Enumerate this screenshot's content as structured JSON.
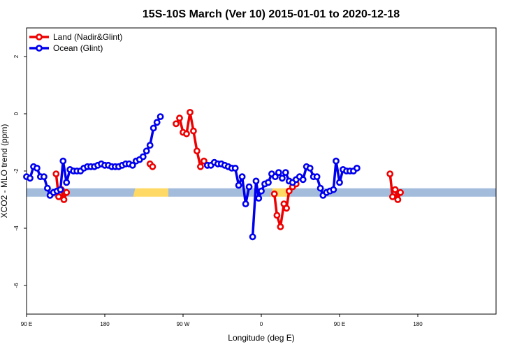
{
  "chart_data": {
    "type": "line",
    "title": "15S-10S March (Ver 10)   2015-01-01 to 2020-12-18",
    "xlabel": "Longitude (deg E)",
    "ylabel": "XCO2 - MLO trend (ppm)",
    "xlim": [
      90,
      630
    ],
    "ylim": [
      -7,
      3
    ],
    "x_ticks": [
      {
        "value": 90,
        "label": "90 E"
      },
      {
        "value": 180,
        "label": "180"
      },
      {
        "value": 270,
        "label": "90 W"
      },
      {
        "value": 360,
        "label": "0"
      },
      {
        "value": 450,
        "label": "90 E"
      },
      {
        "value": 540,
        "label": "180"
      }
    ],
    "y_ticks": [
      {
        "value": -6,
        "label": "-6"
      },
      {
        "value": -4,
        "label": "-4"
      },
      {
        "value": -2,
        "label": "-2"
      },
      {
        "value": 0,
        "label": "0"
      },
      {
        "value": 2,
        "label": "2"
      }
    ],
    "legend_position": "top-left",
    "surface_band": {
      "y": -2.75,
      "colors": {
        "ocean": "#a3bcdc",
        "land": "#ffd966"
      },
      "segments": [
        {
          "type": "ocean",
          "x": [
            90,
            215
          ]
        },
        {
          "type": "land",
          "x": [
            215,
            253
          ]
        },
        {
          "type": "ocean",
          "x": [
            253,
            373
          ]
        },
        {
          "type": "land",
          "x": [
            373,
            391
          ]
        },
        {
          "type": "ocean",
          "x": [
            391,
            630
          ]
        }
      ]
    },
    "series": [
      {
        "name": "Land (Nadir&Glint)",
        "color": "#ee0000",
        "segments": [
          [
            [
              124,
              -2.1
            ],
            [
              127,
              -2.9
            ]
          ],
          [
            [
              130,
              -2.65
            ],
            [
              133,
              -3.0
            ],
            [
              136,
              -2.75
            ]
          ],
          [
            [
              232,
              -1.75
            ],
            [
              235,
              -1.85
            ]
          ],
          [
            [
              262,
              -0.35
            ],
            [
              266,
              -0.15
            ],
            [
              270,
              -0.65
            ],
            [
              274,
              -0.7
            ],
            [
              278,
              0.05
            ],
            [
              282,
              -0.6
            ],
            [
              286,
              -1.3
            ],
            [
              290,
              -1.85
            ],
            [
              294,
              -1.65
            ],
            [
              298,
              -1.8
            ]
          ],
          [
            [
              375,
              -2.8
            ],
            [
              378,
              -3.55
            ],
            [
              382,
              -3.95
            ],
            [
              386,
              -3.15
            ],
            [
              389,
              -3.3
            ],
            [
              392,
              -2.7
            ],
            [
              396,
              -2.55
            ],
            [
              400,
              -2.45
            ]
          ],
          [
            [
              508,
              -2.1
            ],
            [
              511,
              -2.9
            ]
          ],
          [
            [
              514,
              -2.65
            ],
            [
              517,
              -3.0
            ],
            [
              520,
              -2.75
            ]
          ]
        ]
      },
      {
        "name": "Ocean (Glint)",
        "color": "#0000ee",
        "segments": [
          [
            [
              90,
              -2.2
            ],
            [
              94,
              -2.25
            ],
            [
              98,
              -1.85
            ],
            [
              102,
              -1.9
            ],
            [
              106,
              -2.2
            ],
            [
              110,
              -2.2
            ],
            [
              114,
              -2.6
            ],
            [
              117,
              -2.85
            ],
            [
              121,
              -2.75
            ],
            [
              125,
              -2.7
            ],
            [
              129,
              -2.65
            ],
            [
              132,
              -1.65
            ],
            [
              136,
              -2.4
            ],
            [
              140,
              -1.95
            ],
            [
              144,
              -2.0
            ],
            [
              148,
              -2.0
            ],
            [
              152,
              -2.0
            ],
            [
              156,
              -1.9
            ],
            [
              160,
              -1.85
            ],
            [
              164,
              -1.85
            ],
            [
              168,
              -1.85
            ],
            [
              172,
              -1.8
            ],
            [
              176,
              -1.75
            ],
            [
              180,
              -1.8
            ],
            [
              184,
              -1.8
            ],
            [
              188,
              -1.85
            ],
            [
              192,
              -1.85
            ],
            [
              196,
              -1.85
            ],
            [
              200,
              -1.8
            ],
            [
              204,
              -1.75
            ],
            [
              208,
              -1.75
            ],
            [
              212,
              -1.8
            ],
            [
              216,
              -1.65
            ],
            [
              220,
              -1.6
            ],
            [
              224,
              -1.5
            ],
            [
              228,
              -1.3
            ],
            [
              232,
              -1.1
            ],
            [
              236,
              -0.5
            ],
            [
              240,
              -0.3
            ],
            [
              244,
              -0.1
            ]
          ],
          [
            [
              298,
              -1.8
            ],
            [
              302,
              -1.8
            ],
            [
              306,
              -1.7
            ],
            [
              310,
              -1.75
            ],
            [
              314,
              -1.75
            ],
            [
              318,
              -1.8
            ],
            [
              322,
              -1.85
            ],
            [
              326,
              -1.9
            ],
            [
              330,
              -1.9
            ],
            [
              334,
              -2.5
            ],
            [
              338,
              -2.2
            ],
            [
              342,
              -3.15
            ],
            [
              346,
              -2.55
            ]
          ],
          [
            [
              350,
              -4.3
            ],
            [
              354,
              -2.35
            ],
            [
              357,
              -2.95
            ],
            [
              360,
              -2.7
            ],
            [
              364,
              -2.45
            ],
            [
              368,
              -2.4
            ],
            [
              372,
              -2.1
            ],
            [
              376,
              -2.2
            ],
            [
              380,
              -2.05
            ],
            [
              384,
              -2.25
            ],
            [
              388,
              -2.05
            ],
            [
              392,
              -2.35
            ],
            [
              396,
              -2.4
            ],
            [
              400,
              -2.3
            ],
            [
              404,
              -2.2
            ],
            [
              408,
              -2.3
            ],
            [
              412,
              -1.85
            ],
            [
              416,
              -1.9
            ],
            [
              420,
              -2.2
            ],
            [
              424,
              -2.2
            ],
            [
              428,
              -2.6
            ],
            [
              431,
              -2.85
            ],
            [
              435,
              -2.75
            ],
            [
              439,
              -2.7
            ],
            [
              443,
              -2.65
            ],
            [
              446,
              -1.65
            ],
            [
              450,
              -2.4
            ],
            [
              454,
              -1.95
            ],
            [
              458,
              -2.0
            ],
            [
              462,
              -2.0
            ],
            [
              466,
              -2.0
            ],
            [
              470,
              -1.9
            ]
          ]
        ]
      }
    ]
  }
}
